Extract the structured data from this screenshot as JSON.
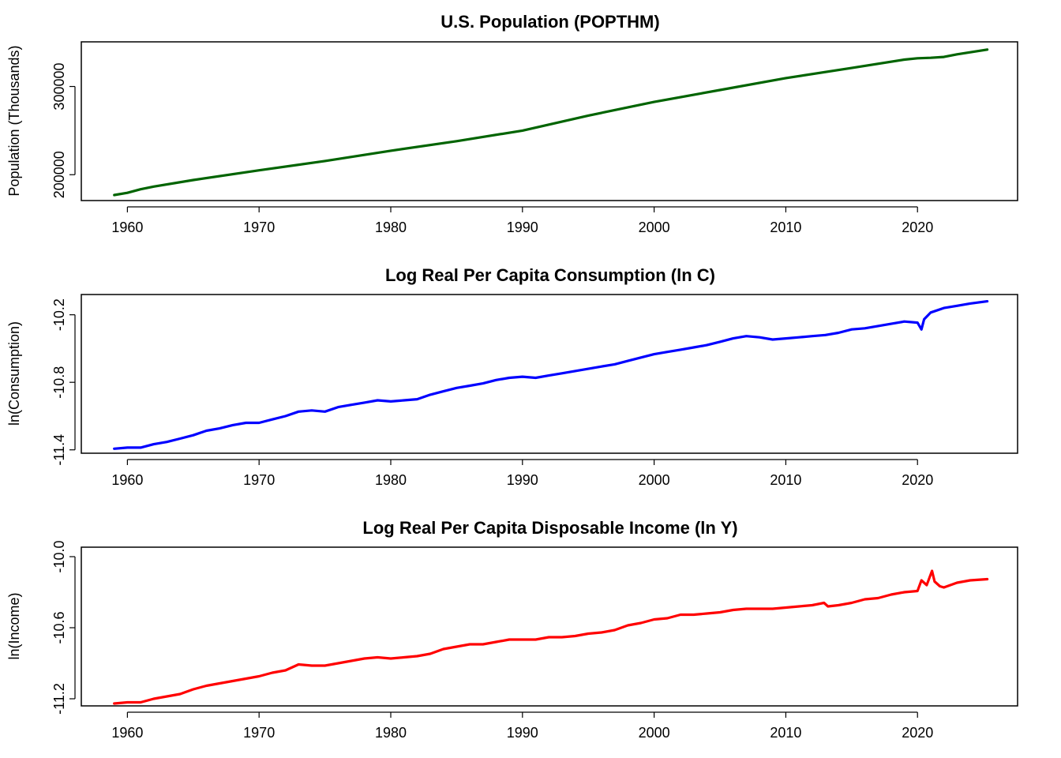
{
  "chart_data": [
    {
      "type": "line",
      "title": "U.S. Population (POPTHM)",
      "xlabel": "",
      "ylabel": "Population (Thousands)",
      "x_ticks": [
        1960,
        1970,
        1980,
        1990,
        2000,
        2010,
        2020
      ],
      "y_ticks": [
        200000,
        300000
      ],
      "xlim": [
        1956.5,
        2027.6
      ],
      "ylim": [
        170700,
        350600
      ],
      "color": "#006400",
      "x": [
        1959,
        1960,
        1961,
        1962,
        1965,
        1970,
        1975,
        1980,
        1985,
        1990,
        1995,
        2000,
        2005,
        2010,
        2015,
        2019,
        2020,
        2021,
        2022,
        2023,
        2025.3
      ],
      "y": [
        177000,
        179500,
        183500,
        186500,
        194000,
        205000,
        215500,
        227200,
        238000,
        250000,
        267000,
        282500,
        296000,
        309500,
        321000,
        330500,
        332000,
        332500,
        333500,
        336500,
        341800
      ]
    },
    {
      "type": "line",
      "title": "Log Real Per Capita Consumption (ln C)",
      "xlabel": "",
      "ylabel": "ln(Consumption)",
      "x_ticks": [
        1960,
        1970,
        1980,
        1990,
        2000,
        2010,
        2020
      ],
      "y_ticks": [
        -11.4,
        -10.8,
        -10.2
      ],
      "y_tick_labels": [
        "-11.4",
        "-10.8",
        "-10.2"
      ],
      "xlim": [
        1956.5,
        2027.6
      ],
      "ylim": [
        -11.43,
        -10.02
      ],
      "color": "#0000ff",
      "x": [
        1959,
        1960,
        1961,
        1962,
        1963,
        1964,
        1965,
        1966,
        1967,
        1968,
        1969,
        1970,
        1971,
        1972,
        1973,
        1974,
        1975,
        1976,
        1977,
        1978,
        1979,
        1980,
        1981,
        1982,
        1983,
        1984,
        1985,
        1986,
        1987,
        1988,
        1989,
        1990,
        1991,
        1992,
        1993,
        1994,
        1995,
        1996,
        1997,
        1998,
        1999,
        2000,
        2001,
        2002,
        2003,
        2004,
        2005,
        2006,
        2007,
        2008,
        2009,
        2010,
        2011,
        2012,
        2013,
        2014,
        2015,
        2016,
        2017,
        2018,
        2019,
        2020,
        2020.3,
        2020.5,
        2021,
        2022,
        2023,
        2024,
        2025.3
      ],
      "y": [
        -11.39,
        -11.38,
        -11.38,
        -11.35,
        -11.33,
        -11.3,
        -11.27,
        -11.23,
        -11.21,
        -11.18,
        -11.16,
        -11.16,
        -11.13,
        -11.1,
        -11.06,
        -11.05,
        -11.06,
        -11.02,
        -11.0,
        -10.98,
        -10.96,
        -10.97,
        -10.96,
        -10.95,
        -10.91,
        -10.88,
        -10.85,
        -10.83,
        -10.81,
        -10.78,
        -10.76,
        -10.75,
        -10.76,
        -10.74,
        -10.72,
        -10.7,
        -10.68,
        -10.66,
        -10.64,
        -10.61,
        -10.58,
        -10.55,
        -10.53,
        -10.51,
        -10.49,
        -10.47,
        -10.44,
        -10.41,
        -10.39,
        -10.4,
        -10.42,
        -10.41,
        -10.4,
        -10.39,
        -10.38,
        -10.36,
        -10.33,
        -10.32,
        -10.3,
        -10.28,
        -10.26,
        -10.27,
        -10.33,
        -10.24,
        -10.18,
        -10.14,
        -10.12,
        -10.1,
        -10.08
      ]
    },
    {
      "type": "line",
      "title": "Log Real Per Capita Disposable Income (ln Y)",
      "xlabel": "",
      "ylabel": "ln(Income)",
      "x_ticks": [
        1960,
        1970,
        1980,
        1990,
        2000,
        2010,
        2020
      ],
      "y_ticks": [
        -11.2,
        -10.6,
        -10.0
      ],
      "y_tick_labels": [
        "-11.2",
        "-10.6",
        "-10.0"
      ],
      "xlim": [
        1956.5,
        2027.6
      ],
      "ylim": [
        -11.26,
        -9.92
      ],
      "color": "#ff0000",
      "x": [
        1959,
        1960,
        1961,
        1962,
        1963,
        1964,
        1965,
        1966,
        1967,
        1968,
        1969,
        1970,
        1971,
        1972,
        1973,
        1974,
        1975,
        1976,
        1977,
        1978,
        1979,
        1980,
        1981,
        1982,
        1983,
        1984,
        1985,
        1986,
        1987,
        1988,
        1989,
        1990,
        1991,
        1992,
        1993,
        1994,
        1995,
        1996,
        1997,
        1998,
        1999,
        2000,
        2001,
        2002,
        2003,
        2004,
        2005,
        2006,
        2007,
        2008,
        2009,
        2010,
        2011,
        2012,
        2012.9,
        2013.2,
        2014,
        2015,
        2016,
        2017,
        2018,
        2019,
        2020,
        2020.3,
        2020.7,
        2021.1,
        2021.3,
        2021.7,
        2022,
        2022.5,
        2023,
        2024,
        2025.3
      ],
      "y": [
        -11.24,
        -11.23,
        -11.23,
        -11.2,
        -11.18,
        -11.16,
        -11.12,
        -11.09,
        -11.07,
        -11.05,
        -11.03,
        -11.01,
        -10.98,
        -10.96,
        -10.91,
        -10.92,
        -10.92,
        -10.9,
        -10.88,
        -10.86,
        -10.85,
        -10.86,
        -10.85,
        -10.84,
        -10.82,
        -10.78,
        -10.76,
        -10.74,
        -10.74,
        -10.72,
        -10.7,
        -10.7,
        -10.7,
        -10.68,
        -10.68,
        -10.67,
        -10.65,
        -10.64,
        -10.62,
        -10.58,
        -10.56,
        -10.53,
        -10.52,
        -10.49,
        -10.49,
        -10.48,
        -10.47,
        -10.45,
        -10.44,
        -10.44,
        -10.44,
        -10.43,
        -10.42,
        -10.41,
        -10.39,
        -10.42,
        -10.41,
        -10.39,
        -10.36,
        -10.35,
        -10.32,
        -10.3,
        -10.29,
        -10.2,
        -10.24,
        -10.12,
        -10.21,
        -10.25,
        -10.26,
        -10.24,
        -10.22,
        -10.2,
        -10.19
      ]
    }
  ]
}
